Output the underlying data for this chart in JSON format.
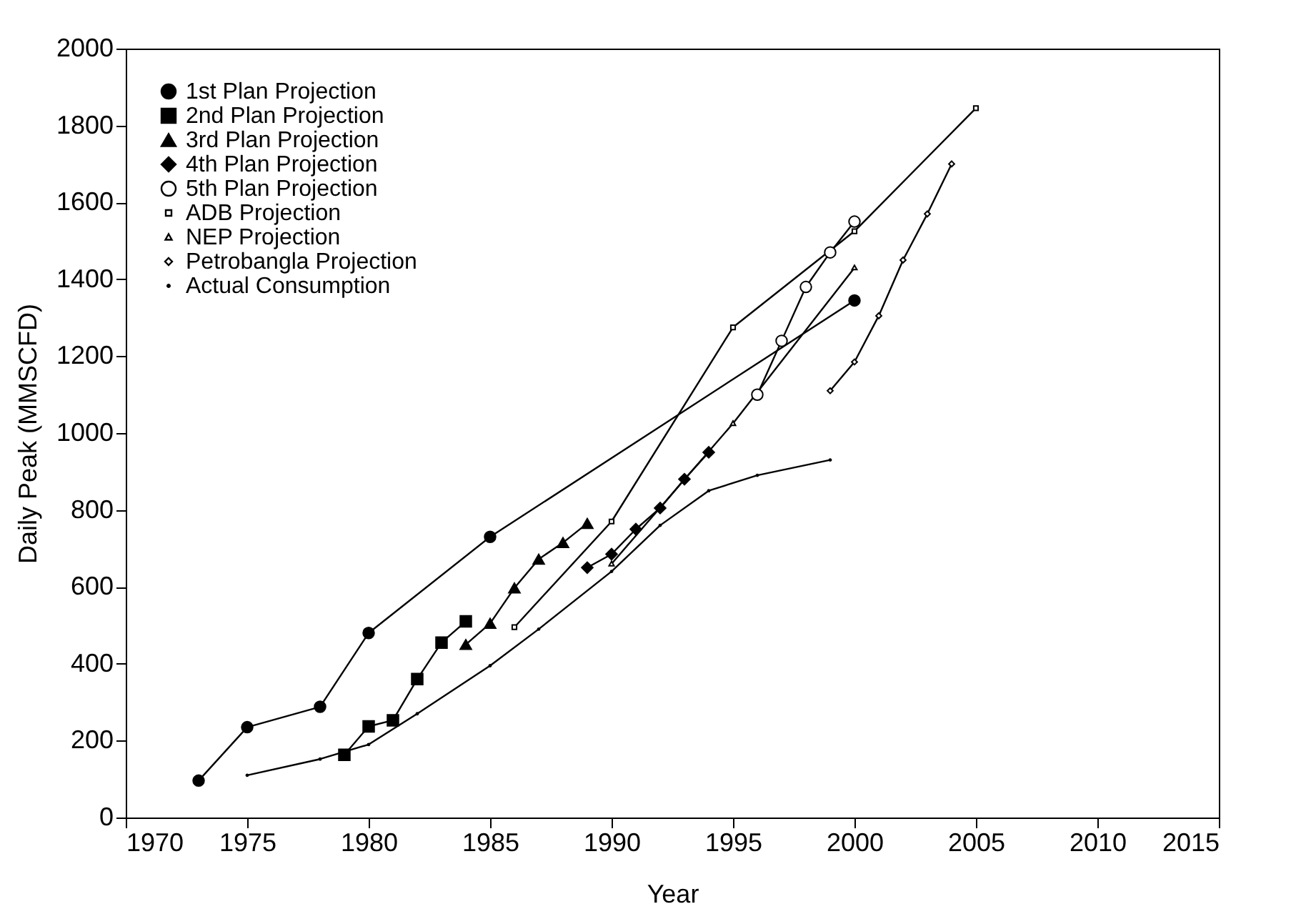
{
  "chart_data": {
    "type": "line",
    "xlabel": "Year",
    "ylabel": "Daily Peak (MMSCFD)",
    "xlim": [
      1970,
      2015
    ],
    "xticks": [
      1970,
      1975,
      1980,
      1985,
      1990,
      1995,
      2000,
      2005,
      2010,
      2015
    ],
    "ylim": [
      0,
      2000
    ],
    "yticks": [
      0,
      200,
      400,
      600,
      800,
      1000,
      1200,
      1400,
      1600,
      1800,
      2000
    ],
    "grid": false,
    "legend": "top left",
    "series": [
      {
        "name": "1st Plan Projection",
        "color": "#000000",
        "marker": "circle",
        "x": [
          1973,
          1975,
          1978,
          1980,
          1985,
          2000
        ],
        "values": [
          96,
          235,
          288,
          480,
          730,
          1345
        ]
      },
      {
        "name": "2nd Plan Projection",
        "color": "#000000",
        "marker": "square",
        "x": [
          1979,
          1980,
          1981,
          1982,
          1983,
          1984
        ],
        "values": [
          163,
          237,
          253,
          360,
          455,
          510
        ]
      },
      {
        "name": "3rd Plan Projection",
        "color": "#000000",
        "marker": "triangle",
        "x": [
          1984,
          1985,
          1986,
          1987,
          1988,
          1989
        ],
        "values": [
          450,
          505,
          597,
          672,
          715,
          765
        ]
      },
      {
        "name": "4th Plan Projection",
        "color": "#000000",
        "marker": "diamond",
        "x": [
          1989,
          1990,
          1991,
          1992,
          1993,
          1994
        ],
        "values": [
          650,
          685,
          750,
          805,
          880,
          950
        ]
      },
      {
        "name": "5th Plan Projection",
        "color": "#000000",
        "marker": "circle-open",
        "x": [
          1996,
          1997,
          1998,
          1999,
          2000
        ],
        "values": [
          1100,
          1240,
          1380,
          1470,
          1550
        ]
      },
      {
        "name": "ADB Projection",
        "color": "#000000",
        "marker": "square-open",
        "x": [
          1986,
          1990,
          1995,
          2000,
          2005
        ],
        "values": [
          495,
          770,
          1275,
          1525,
          1845
        ]
      },
      {
        "name": "NEP Projection",
        "color": "#000000",
        "marker": "triangle-open",
        "x": [
          1990,
          1995,
          2000
        ],
        "values": [
          660,
          1025,
          1430
        ]
      },
      {
        "name": "Petrobangla Projection",
        "color": "#000000",
        "marker": "diamond-open",
        "x": [
          1999,
          2000,
          2001,
          2002,
          2003,
          2004
        ],
        "values": [
          1110,
          1185,
          1305,
          1450,
          1570,
          1700
        ]
      },
      {
        "name": "Actual Consumption",
        "color": "#000000",
        "marker": "point",
        "x": [
          1975,
          1978,
          1980,
          1982,
          1985,
          1987,
          1990,
          1992,
          1994,
          1996,
          1999
        ],
        "values": [
          110,
          152,
          190,
          270,
          395,
          490,
          640,
          760,
          850,
          890,
          930
        ]
      }
    ]
  }
}
